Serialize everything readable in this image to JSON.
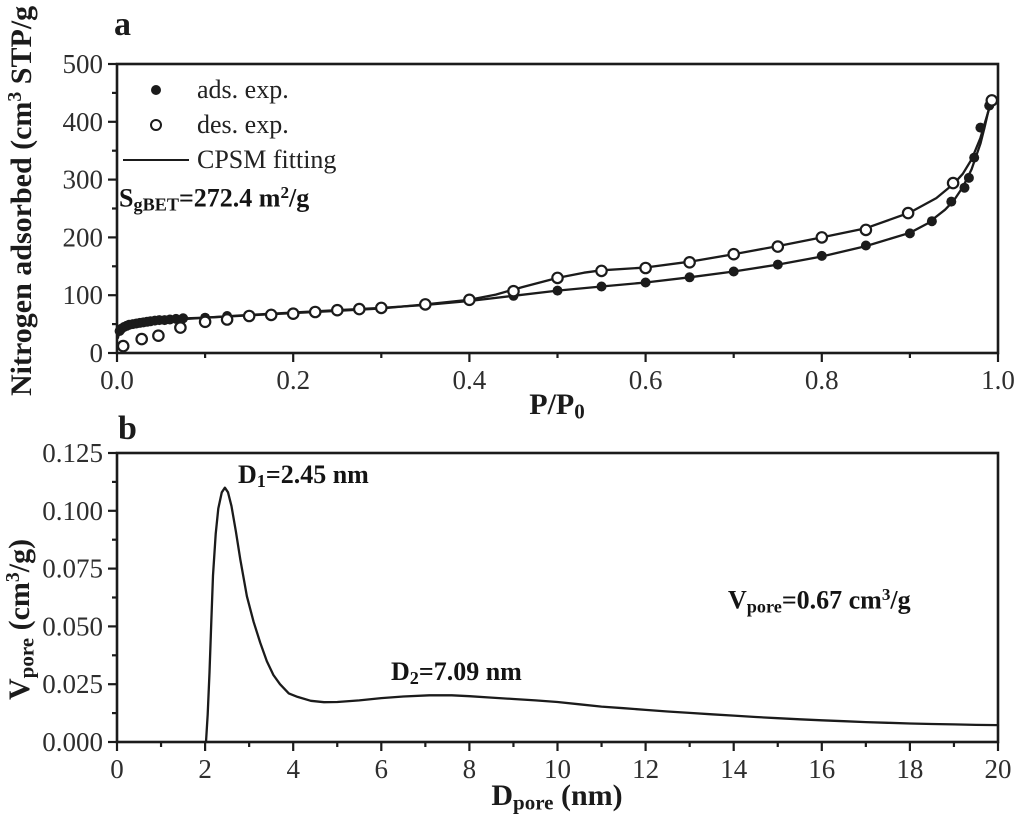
{
  "figure": {
    "ink": "#1b1b1b",
    "tick_label_color": "#2e2e2e",
    "background": "#ffffff"
  },
  "panel_a": {
    "panel_label": "a",
    "y_title": {
      "pre": "Nitrogen adsorbed (cm",
      "sup": "3",
      "post": " STP/g"
    },
    "x_title": {
      "pre": "P/P",
      "sub": "0"
    },
    "annotation": {
      "pre": "S",
      "sub": "gBET",
      "mid": "=272.4 m",
      "sup": "2",
      "post": "/g"
    }
  },
  "panel_b": {
    "panel_label": "b",
    "y_title": {
      "pre": "V",
      "sub": "pore",
      "mid": " (cm",
      "sup": "3",
      "post": "/g)"
    },
    "x_title": {
      "pre": "D",
      "sub": "pore",
      "post": " (nm)"
    },
    "peak1": {
      "pre": "D",
      "sub": "1",
      "post": "=2.45 nm"
    },
    "peak2": {
      "pre": "D",
      "sub": "2",
      "post": "=7.09 nm"
    },
    "annotation": {
      "pre": "V",
      "sub": "pore",
      "mid": "=0.67 cm",
      "sup": "3",
      "post": "/g"
    }
  },
  "chart_data": [
    {
      "id": "panel_a",
      "type": "scatter",
      "title": "",
      "xlabel": "P/P0",
      "ylabel": "Nitrogen adsorbed (cm3 STP/g)",
      "xlim": [
        0,
        1
      ],
      "ylim": [
        0,
        500
      ],
      "grid": false,
      "legend_position": "upper-left-inside",
      "annotations": [
        "SgBET=272.4 m2/g"
      ],
      "x_ticks": {
        "values": [
          0,
          0.2,
          0.4,
          0.6,
          0.8,
          1.0
        ],
        "labels": [
          "0.0",
          "0.2",
          "0.4",
          "0.6",
          "0.8",
          "1.0"
        ],
        "minor": [
          0.1,
          0.3,
          0.5,
          0.7,
          0.9
        ]
      },
      "y_ticks": {
        "values": [
          0,
          100,
          200,
          300,
          400,
          500
        ],
        "labels": [
          "0",
          "100",
          "200",
          "300",
          "400",
          "500"
        ],
        "minor": [
          50,
          150,
          250,
          350,
          450
        ]
      },
      "series": [
        {
          "key": "ads_exp",
          "name": "ads. exp.",
          "type": "scatter",
          "marker": "filled-circle",
          "x": [
            0.003,
            0.005,
            0.008,
            0.011,
            0.014,
            0.018,
            0.022,
            0.026,
            0.03,
            0.034,
            0.038,
            0.043,
            0.048,
            0.054,
            0.06,
            0.067,
            0.075,
            0.1,
            0.125,
            0.15,
            0.175,
            0.2,
            0.225,
            0.25,
            0.275,
            0.3,
            0.35,
            0.4,
            0.45,
            0.5,
            0.55,
            0.6,
            0.65,
            0.7,
            0.75,
            0.8,
            0.85,
            0.9,
            0.925,
            0.947,
            0.962,
            0.967,
            0.973,
            0.98,
            0.99
          ],
          "y": [
            38,
            42,
            45,
            47,
            49,
            50,
            51,
            52,
            53,
            54,
            55,
            56,
            57,
            57,
            58,
            59,
            60,
            61,
            64,
            66,
            68,
            70,
            72,
            74,
            76,
            78,
            83,
            90,
            99,
            108,
            115,
            122,
            131,
            141,
            153,
            168,
            186,
            207,
            228,
            262,
            286,
            303,
            338,
            390,
            428
          ]
        },
        {
          "key": "des_exp",
          "name": "des. exp.",
          "type": "scatter",
          "marker": "open-circle",
          "x": [
            0.007,
            0.028,
            0.047,
            0.072,
            0.1,
            0.125,
            0.15,
            0.175,
            0.2,
            0.225,
            0.25,
            0.275,
            0.3,
            0.35,
            0.4,
            0.45,
            0.5,
            0.55,
            0.6,
            0.65,
            0.7,
            0.75,
            0.8,
            0.85,
            0.898,
            0.949,
            0.993
          ],
          "y": [
            12,
            24,
            30,
            44,
            54,
            58,
            64,
            66,
            68,
            71,
            74,
            76,
            78,
            84,
            92,
            107,
            130,
            142,
            147,
            157,
            171,
            184,
            200,
            213,
            242,
            294,
            437
          ]
        },
        {
          "key": "cpsm_fit",
          "name": "CPSM fitting",
          "type": "line",
          "branches": [
            {
              "x": [
                0.001,
                0.002,
                0.004,
                0.007,
                0.012,
                0.02,
                0.03,
                0.045,
                0.06,
                0.08,
                0.1,
                0.15,
                0.2,
                0.25,
                0.3,
                0.35,
                0.4,
                0.45,
                0.5,
                0.55,
                0.6,
                0.65,
                0.7,
                0.75,
                0.8,
                0.85,
                0.9,
                0.92,
                0.94,
                0.95,
                0.96,
                0.97,
                0.98,
                0.985,
                0.99,
                0.994
              ],
              "y": [
                26,
                32,
                38,
                43,
                47,
                50,
                53,
                56,
                58,
                60,
                61,
                66,
                70,
                74,
                78,
                83,
                90,
                99,
                108,
                115,
                122,
                131,
                141,
                153,
                167,
                185,
                208,
                224,
                248,
                264,
                287,
                318,
                362,
                392,
                425,
                440
              ]
            },
            {
              "x": [
                0.02,
                0.05,
                0.08,
                0.1,
                0.15,
                0.2,
                0.25,
                0.3,
                0.35,
                0.4,
                0.43,
                0.46,
                0.48,
                0.5,
                0.53,
                0.55,
                0.6,
                0.65,
                0.7,
                0.75,
                0.8,
                0.85,
                0.9,
                0.93,
                0.95,
                0.96,
                0.97,
                0.98,
                0.99,
                0.994
              ],
              "y": [
                49,
                55,
                59,
                61,
                65,
                69,
                73,
                77,
                84,
                92,
                101,
                114,
                122,
                130,
                139,
                143,
                148,
                158,
                171,
                185,
                200,
                216,
                243,
                268,
                293,
                310,
                335,
                372,
                423,
                443
              ]
            }
          ]
        }
      ]
    },
    {
      "id": "panel_b",
      "type": "line",
      "title": "",
      "xlabel": "Dpore (nm)",
      "ylabel": "Vpore (cm3/g)",
      "xlim": [
        0,
        20
      ],
      "ylim": [
        0,
        0.125
      ],
      "grid": false,
      "annotations": [
        "D1=2.45 nm",
        "D2=7.09 nm",
        "Vpore=0.67 cm3/g"
      ],
      "peaks": [
        {
          "label": "D1",
          "x": 2.45,
          "y": 0.11
        },
        {
          "label": "D2",
          "x": 7.09,
          "y": 0.0202
        }
      ],
      "x_ticks": {
        "values": [
          0,
          2,
          4,
          6,
          8,
          10,
          12,
          14,
          16,
          18,
          20
        ],
        "labels": [
          "0",
          "2",
          "4",
          "6",
          "8",
          "10",
          "12",
          "14",
          "16",
          "18",
          "20"
        ],
        "minor": [
          1,
          3,
          5,
          7,
          9,
          11,
          13,
          15,
          17,
          19
        ]
      },
      "y_ticks": {
        "values": [
          0,
          0.025,
          0.05,
          0.075,
          0.1,
          0.125
        ],
        "labels": [
          "0.000",
          "0.025",
          "0.050",
          "0.075",
          "0.100",
          "0.125"
        ],
        "minor": [
          0.0125,
          0.0375,
          0.0625,
          0.0875,
          0.1125
        ]
      },
      "series": [
        {
          "key": "psd_curve",
          "type": "line",
          "x": [
            2.02,
            2.06,
            2.1,
            2.14,
            2.18,
            2.24,
            2.3,
            2.38,
            2.45,
            2.52,
            2.6,
            2.7,
            2.8,
            2.95,
            3.1,
            3.25,
            3.4,
            3.55,
            3.7,
            3.9,
            4.1,
            4.4,
            4.7,
            5.0,
            5.5,
            6.0,
            6.5,
            7.09,
            7.6,
            8.0,
            8.5,
            9.0,
            9.5,
            10.0,
            10.5,
            11.0,
            11.5,
            12.0,
            12.5,
            13.0,
            13.5,
            14.0,
            14.5,
            15.0,
            15.5,
            16.0,
            16.5,
            17.0,
            17.5,
            18.0,
            18.5,
            19.0,
            19.5,
            20.0
          ],
          "y": [
            0.0,
            0.012,
            0.03,
            0.052,
            0.072,
            0.09,
            0.101,
            0.108,
            0.11,
            0.108,
            0.102,
            0.091,
            0.079,
            0.063,
            0.052,
            0.043,
            0.035,
            0.029,
            0.025,
            0.021,
            0.0195,
            0.0178,
            0.0172,
            0.0173,
            0.018,
            0.019,
            0.0197,
            0.0202,
            0.0202,
            0.0198,
            0.0192,
            0.0186,
            0.018,
            0.0173,
            0.0163,
            0.0153,
            0.0146,
            0.0139,
            0.0132,
            0.0126,
            0.012,
            0.0114,
            0.0108,
            0.0103,
            0.0098,
            0.0094,
            0.009,
            0.0086,
            0.0083,
            0.008,
            0.0078,
            0.0076,
            0.0074,
            0.0073
          ]
        }
      ]
    }
  ]
}
